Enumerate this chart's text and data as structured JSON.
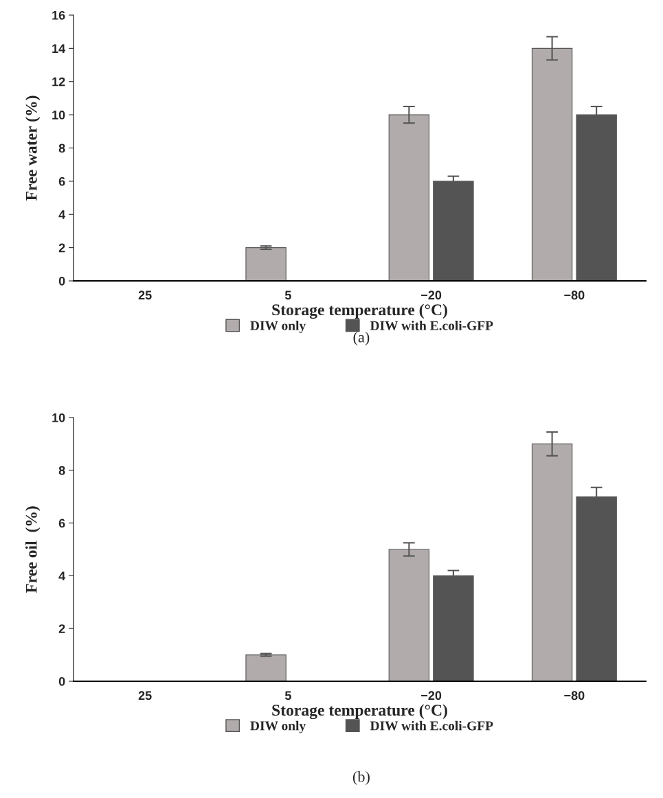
{
  "chart_data": [
    {
      "type": "bar",
      "categories": [
        "25",
        "5",
        "−20",
        "−80"
      ],
      "xlabel": "Storage temperature (°C)",
      "ylabel": "Free water (%)",
      "ylim": [
        0,
        16
      ],
      "yticks": [
        0,
        2,
        4,
        6,
        8,
        10,
        12,
        14,
        16
      ],
      "grid": false,
      "legend": "bottom",
      "annotations": [
        "(a)"
      ],
      "series": [
        {
          "name": "DIW only",
          "color": "#b1acab",
          "values": [
            null,
            2,
            10,
            14
          ],
          "errors": [
            null,
            0.1,
            0.5,
            0.7
          ]
        },
        {
          "name": "DIW with E.coli-GFP",
          "color": "#545454",
          "values": [
            null,
            null,
            6,
            10
          ],
          "errors": [
            null,
            null,
            0.3,
            0.5
          ]
        }
      ]
    },
    {
      "type": "bar",
      "categories": [
        "25",
        "5",
        "−20",
        "−80"
      ],
      "xlabel": "Storage temperature (°C)",
      "ylabel": "Free oil  (%)",
      "ylim": [
        0,
        10
      ],
      "yticks": [
        0,
        2,
        4,
        6,
        8,
        10
      ],
      "grid": false,
      "legend": "bottom",
      "annotations": [
        "(b)"
      ],
      "series": [
        {
          "name": "DIW only",
          "color": "#b1acab",
          "values": [
            null,
            1,
            5,
            9
          ],
          "errors": [
            null,
            0.05,
            0.25,
            0.45
          ]
        },
        {
          "name": "DIW with E.coli-GFP",
          "color": "#545454",
          "values": [
            null,
            null,
            4,
            7
          ],
          "errors": [
            null,
            null,
            0.2,
            0.35
          ]
        }
      ]
    }
  ]
}
